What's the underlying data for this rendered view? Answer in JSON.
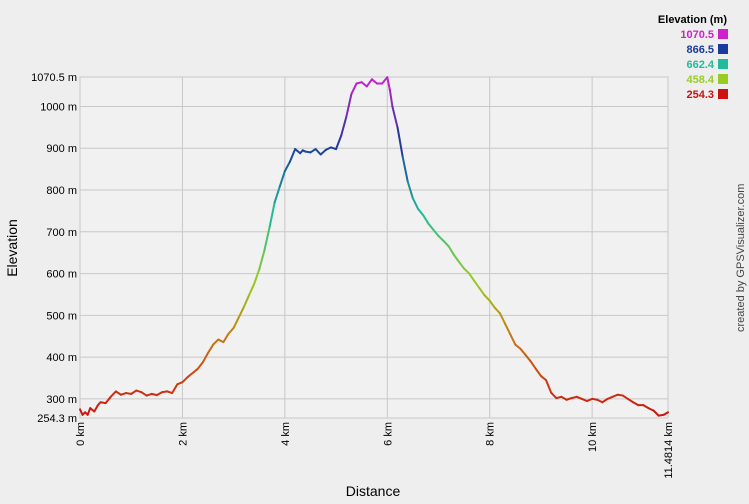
{
  "chart_data": {
    "type": "line",
    "xlabel": "Distance",
    "ylabel": "Elevation",
    "xlim": [
      0,
      11.4814
    ],
    "ylim": [
      254.3,
      1070.5
    ],
    "x_ticks": [
      {
        "value": 0,
        "label": "0 km"
      },
      {
        "value": 2,
        "label": "2 km"
      },
      {
        "value": 4,
        "label": "4 km"
      },
      {
        "value": 6,
        "label": "6 km"
      },
      {
        "value": 8,
        "label": "8 km"
      },
      {
        "value": 10,
        "label": "10 km"
      },
      {
        "value": 11.4814,
        "label": "11.4814 km"
      }
    ],
    "y_ticks": [
      {
        "value": 254.3,
        "label": "254.3 m"
      },
      {
        "value": 300,
        "label": "300 m"
      },
      {
        "value": 400,
        "label": "400 m"
      },
      {
        "value": 500,
        "label": "500 m"
      },
      {
        "value": 600,
        "label": "600 m"
      },
      {
        "value": 700,
        "label": "700 m"
      },
      {
        "value": 800,
        "label": "800 m"
      },
      {
        "value": 900,
        "label": "900 m"
      },
      {
        "value": 1000,
        "label": "1000 m"
      },
      {
        "value": 1070.5,
        "label": "1070.5 m"
      }
    ],
    "grid": true,
    "legend_position": "top-right",
    "legend": {
      "title": "Elevation (m)",
      "entries": [
        {
          "label": "1070.5",
          "color": "#cc22cc"
        },
        {
          "label": "866.5",
          "color": "#1a3a9c"
        },
        {
          "label": "662.4",
          "color": "#22bb99"
        },
        {
          "label": "458.4",
          "color": "#99cc22"
        },
        {
          "label": "254.3",
          "color": "#cc1111"
        }
      ]
    },
    "series": [
      {
        "color_scale": [
          "#cc1111",
          "#cc6611",
          "#99cc22",
          "#22bb99",
          "#1a3a9c",
          "#cc22cc"
        ],
        "x": [
          0,
          0.05,
          0.1,
          0.15,
          0.2,
          0.28,
          0.35,
          0.4,
          0.5,
          0.6,
          0.7,
          0.8,
          0.9,
          1.0,
          1.1,
          1.2,
          1.3,
          1.4,
          1.5,
          1.6,
          1.7,
          1.8,
          1.9,
          2.0,
          2.1,
          2.2,
          2.3,
          2.4,
          2.5,
          2.6,
          2.7,
          2.8,
          2.9,
          3.0,
          3.1,
          3.2,
          3.3,
          3.4,
          3.5,
          3.6,
          3.7,
          3.8,
          3.9,
          4.0,
          4.1,
          4.2,
          4.3,
          4.35,
          4.4,
          4.5,
          4.6,
          4.7,
          4.8,
          4.9,
          5.0,
          5.1,
          5.2,
          5.3,
          5.4,
          5.5,
          5.6,
          5.7,
          5.8,
          5.9,
          6.0,
          6.05,
          6.1,
          6.2,
          6.3,
          6.4,
          6.5,
          6.6,
          6.7,
          6.8,
          6.9,
          7.0,
          7.1,
          7.2,
          7.3,
          7.4,
          7.5,
          7.6,
          7.7,
          7.8,
          7.9,
          8.0,
          8.1,
          8.2,
          8.3,
          8.4,
          8.5,
          8.6,
          8.7,
          8.8,
          8.9,
          9.0,
          9.1,
          9.2,
          9.3,
          9.4,
          9.5,
          9.6,
          9.7,
          9.8,
          9.9,
          10.0,
          10.1,
          10.2,
          10.3,
          10.4,
          10.5,
          10.6,
          10.7,
          10.8,
          10.9,
          11.0,
          11.1,
          11.2,
          11.3,
          11.4,
          11.4814
        ],
        "y": [
          275,
          262,
          268,
          262,
          278,
          270,
          285,
          292,
          290,
          305,
          318,
          310,
          314,
          312,
          320,
          316,
          308,
          312,
          309,
          316,
          318,
          314,
          335,
          340,
          352,
          362,
          372,
          388,
          410,
          430,
          442,
          436,
          456,
          470,
          495,
          520,
          548,
          575,
          610,
          655,
          710,
          770,
          808,
          845,
          868,
          898,
          888,
          895,
          892,
          890,
          898,
          885,
          896,
          902,
          898,
          930,
          975,
          1030,
          1055,
          1058,
          1048,
          1065,
          1055,
          1055,
          1070,
          1040,
          1000,
          950,
          880,
          820,
          780,
          755,
          740,
          720,
          705,
          690,
          678,
          665,
          645,
          628,
          612,
          600,
          582,
          565,
          548,
          535,
          518,
          505,
          480,
          455,
          430,
          420,
          405,
          390,
          372,
          355,
          345,
          315,
          302,
          305,
          298,
          302,
          305,
          300,
          295,
          300,
          298,
          292,
          300,
          305,
          310,
          308,
          300,
          292,
          285,
          285,
          278,
          272,
          260,
          262,
          268
        ]
      }
    ]
  },
  "credit": "created by GPSVisualizer.com"
}
